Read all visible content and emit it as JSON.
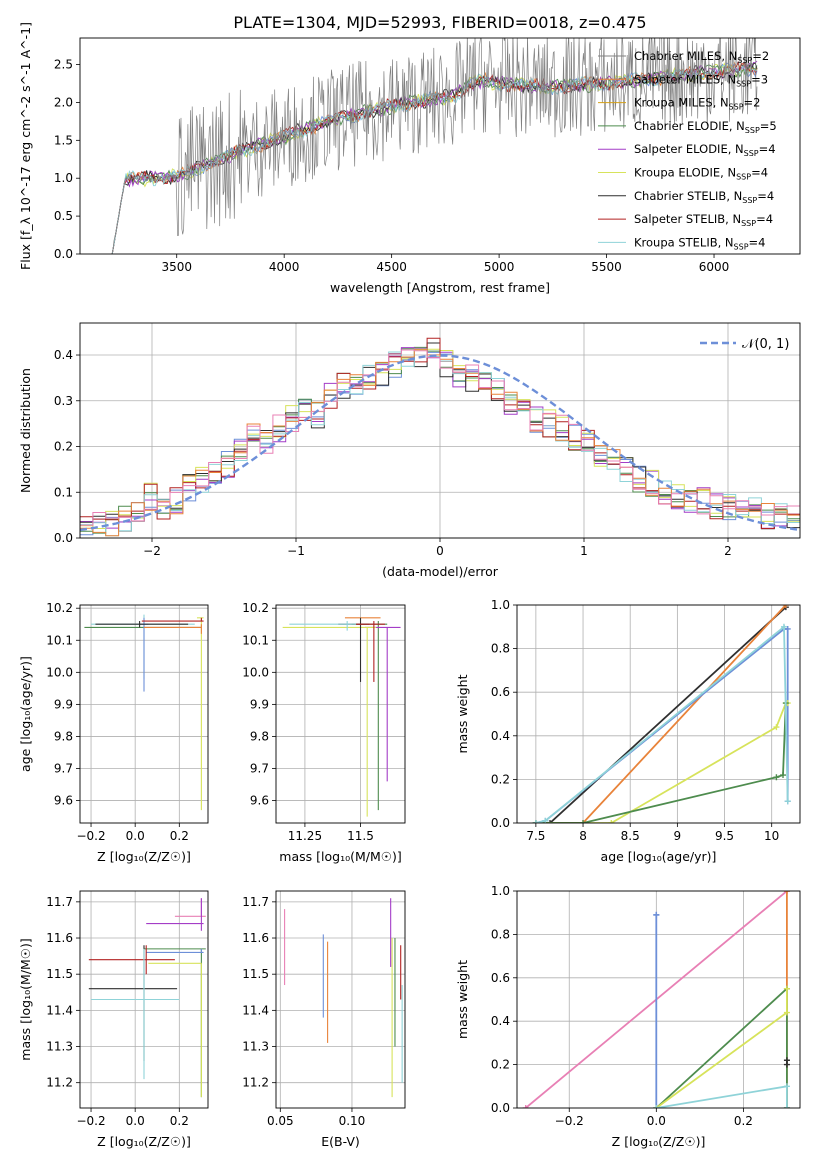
{
  "figure_title": "PLATE=1304, MJD=52993, FIBERID=0018, z=0.475",
  "colors": [
    "#808080",
    "#e8833a",
    "#d4a017",
    "#4e8c4e",
    "#a43dc7",
    "#d7e35b",
    "#2f2f2f",
    "#b22222",
    "#8fd3d8",
    "#6d8fd8",
    "#e880b5"
  ],
  "chart_data": [
    {
      "id": "spectrum",
      "type": "line",
      "title": "PLATE=1304, MJD=52993, FIBERID=0018, z=0.475",
      "xlabel": "wavelength [Angstrom, rest frame]",
      "ylabel": "Flux [f_λ 10^-17 erg cm^-2 s^-1 A^-1]",
      "xlim": [
        3050,
        6400
      ],
      "ylim": [
        0,
        2.85
      ],
      "xticks": [
        3500,
        4000,
        4500,
        5000,
        5500,
        6000
      ],
      "yticks": [
        0.0,
        0.5,
        1.0,
        1.5,
        2.0,
        2.5
      ],
      "legend_loc": "top-right",
      "legend": [
        "Chabrier MILES, N_SSP=2",
        "Salpeter MILES, N_SSP=3",
        "Kroupa MILES, N_SSP=2",
        "Chabrier ELODIE, N_SSP=5",
        "Salpeter ELODIE, N_SSP=4",
        "Kroupa ELODIE, N_SSP=4",
        "Chabrier STELIB, N_SSP=4",
        "Salpeter STELIB, N_SSP=4",
        "Kroupa STELIB, N_SSP=4"
      ],
      "continuum": {
        "x": [
          3200,
          3260,
          3350,
          3500,
          3700,
          4000,
          4200,
          4500,
          4800,
          4900,
          5000,
          5200,
          5500,
          5800,
          6000,
          6200
        ],
        "y": [
          0.0,
          1.0,
          1.0,
          1.02,
          1.25,
          1.55,
          1.75,
          1.95,
          2.1,
          2.3,
          2.25,
          2.2,
          2.25,
          2.35,
          2.4,
          2.45
        ]
      }
    },
    {
      "id": "residuals",
      "type": "line",
      "xlabel": "(data-model)/error",
      "ylabel": "Normed distribution",
      "xlim": [
        -2.5,
        2.5
      ],
      "ylim": [
        0,
        0.47
      ],
      "xticks": [
        -2,
        -1,
        0,
        1,
        2
      ],
      "yticks": [
        0.0,
        0.1,
        0.2,
        0.3,
        0.4
      ],
      "legend": [
        "𝒩(0, 1)"
      ],
      "legend_loc": "top-right",
      "grid": true,
      "hist_base": [
        0.03,
        0.03,
        0.03,
        0.04,
        0.06,
        0.09,
        0.07,
        0.08,
        0.11,
        0.13,
        0.14,
        0.16,
        0.19,
        0.23,
        0.21,
        0.24,
        0.26,
        0.28,
        0.27,
        0.31,
        0.33,
        0.34,
        0.35,
        0.36,
        0.38,
        0.39,
        0.4,
        0.41,
        0.38,
        0.36,
        0.35,
        0.34,
        0.32,
        0.3,
        0.28,
        0.26,
        0.25,
        0.24,
        0.22,
        0.21,
        0.18,
        0.17,
        0.15,
        0.13,
        0.12,
        0.1,
        0.09,
        0.08,
        0.08,
        0.07,
        0.07,
        0.06,
        0.06,
        0.05,
        0.05,
        0.05
      ]
    },
    {
      "id": "age-vs-Z",
      "type": "scatter",
      "xlabel": "Z [log10(Z/Z☉)]",
      "ylabel": "age [log10(age/yr)]",
      "xlim": [
        -0.25,
        0.33
      ],
      "ylim": [
        9.53,
        10.21
      ],
      "xticks": [
        -0.2,
        0.0,
        0.2
      ],
      "xtick_labels": [
        "−0.2",
        "0.0",
        "0.2"
      ],
      "yticks": [
        9.6,
        9.7,
        9.8,
        9.9,
        10.0,
        10.1,
        10.2
      ],
      "grid": true,
      "points": [
        {
          "x": 0.03,
          "y": 10.14,
          "xerr": [
            0.26,
            0.27
          ],
          "yerr": [
            0.0,
            0.0
          ],
          "c": 3
        },
        {
          "x": 0.04,
          "y": 10.15,
          "xerr": [
            0.24,
            0.23
          ],
          "yerr": [
            0.17,
            0.03
          ],
          "c": 8
        },
        {
          "x": 0.04,
          "y": 10.15,
          "xerr": [
            0.02,
            0.02
          ],
          "yerr": [
            0.21,
            0.02
          ],
          "c": 9
        },
        {
          "x": 0.3,
          "y": 10.17,
          "xerr": [
            0.02,
            0.01
          ],
          "yerr": [
            0.6,
            0.0
          ],
          "c": 5
        },
        {
          "x": 0.3,
          "y": 10.14,
          "xerr": [
            0.26,
            0.0
          ],
          "yerr": [
            0.02,
            0.01
          ],
          "c": 1
        },
        {
          "x": 0.02,
          "y": 10.15,
          "xerr": [
            0.2,
            0.22
          ],
          "yerr": [
            0.01,
            0.01
          ],
          "c": 6
        },
        {
          "x": 0.3,
          "y": 10.16,
          "xerr": [
            0.27,
            0.01
          ],
          "yerr": [
            0.0,
            0.01
          ],
          "c": 7
        }
      ]
    },
    {
      "id": "age-vs-mass",
      "type": "scatter",
      "xlabel": "mass [log10(M/M☉)]",
      "xlim": [
        11.12,
        11.7
      ],
      "ylim": [
        9.53,
        10.21
      ],
      "xticks": [
        11.25,
        11.5
      ],
      "yticks": [
        9.6,
        9.7,
        9.8,
        9.9,
        10.0,
        10.1,
        10.2
      ],
      "grid": true,
      "points": [
        {
          "x": 11.55,
          "y": 10.17,
          "xerr": [
            0.12,
            0.04
          ],
          "yerr": [
            0.0,
            0.0
          ],
          "c": 1
        },
        {
          "x": 11.58,
          "y": 10.15,
          "xerr": [
            0.12,
            0.04
          ],
          "yerr": [
            0.58,
            0.01
          ],
          "c": 3
        },
        {
          "x": 11.62,
          "y": 10.14,
          "xerr": [
            0.1,
            0.06
          ],
          "yerr": [
            0.48,
            0.0
          ],
          "c": 4
        },
        {
          "x": 11.53,
          "y": 10.14,
          "xerr": [
            0.38,
            0.04
          ],
          "yerr": [
            0.59,
            0.0
          ],
          "c": 5
        },
        {
          "x": 11.5,
          "y": 10.15,
          "xerr": [
            0.1,
            0.04
          ],
          "yerr": [
            0.18,
            0.02
          ],
          "c": 6
        },
        {
          "x": 11.56,
          "y": 10.15,
          "xerr": [
            0.08,
            0.05
          ],
          "yerr": [
            0.18,
            0.01
          ],
          "c": 7
        },
        {
          "x": 11.44,
          "y": 10.15,
          "xerr": [
            0.26,
            0.04
          ],
          "yerr": [
            0.02,
            0.01
          ],
          "c": 8
        }
      ]
    },
    {
      "id": "weight-vs-age",
      "type": "line",
      "xlabel": "age [log10(age/yr)]",
      "ylabel": "mass weight",
      "xlim": [
        7.3,
        10.3
      ],
      "ylim": [
        0,
        1.0
      ],
      "xticks": [
        7.5,
        8.0,
        8.5,
        9.0,
        9.5,
        10.0
      ],
      "yticks": [
        0.0,
        0.2,
        0.4,
        0.6,
        0.8,
        1.0
      ],
      "grid": true,
      "series": [
        {
          "c": 6,
          "x": [
            7.5,
            7.65,
            10.15
          ],
          "y": [
            0.0,
            0.0,
            0.99
          ]
        },
        {
          "c": 1,
          "x": [
            7.5,
            8.0,
            10.15
          ],
          "y": [
            0.0,
            0.0,
            1.0
          ]
        },
        {
          "c": 9,
          "x": [
            7.5,
            7.6,
            10.13,
            10.17,
            10.17
          ],
          "y": [
            0.0,
            0.01,
            0.89,
            0.89,
            0.1
          ]
        },
        {
          "c": 5,
          "x": [
            7.5,
            8.3,
            10.05,
            10.15,
            10.17
          ],
          "y": [
            0.0,
            0.0,
            0.44,
            0.55,
            0.55
          ]
        },
        {
          "c": 3,
          "x": [
            7.5,
            8.0,
            10.05,
            10.12,
            10.15
          ],
          "y": [
            0.0,
            0.0,
            0.21,
            0.22,
            0.55
          ]
        },
        {
          "c": 8,
          "x": [
            7.5,
            7.6,
            10.13,
            10.17
          ],
          "y": [
            0.0,
            0.01,
            0.9,
            0.1
          ]
        }
      ]
    },
    {
      "id": "mass-vs-Z",
      "type": "scatter",
      "xlabel": "Z [log10(Z/Z☉)]",
      "ylabel": "mass [log10(M/M☉)]",
      "xlim": [
        -0.25,
        0.33
      ],
      "ylim": [
        11.13,
        11.73
      ],
      "xticks": [
        -0.2,
        0.0,
        0.2
      ],
      "xtick_labels": [
        "−0.2",
        "0.0",
        "0.2"
      ],
      "yticks": [
        11.2,
        11.3,
        11.4,
        11.5,
        11.6,
        11.7
      ],
      "grid": true,
      "points": [
        {
          "x": 0.3,
          "y": 11.66,
          "xerr": [
            0.12,
            0.02
          ],
          "yerr": [
            0.0,
            0.05
          ],
          "c": 10
        },
        {
          "x": 0.3,
          "y": 11.64,
          "xerr": [
            0.25,
            0.01
          ],
          "yerr": [
            0.02,
            0.07
          ],
          "c": 4
        },
        {
          "x": 0.3,
          "y": 11.57,
          "xerr": [
            0.26,
            0.02
          ],
          "yerr": [
            0.41,
            0.0
          ],
          "c": 3
        },
        {
          "x": 0.3,
          "y": 11.56,
          "xerr": [
            0.25,
            0.01
          ],
          "yerr": [
            0.0,
            0.01
          ],
          "c": 9
        },
        {
          "x": 0.05,
          "y": 11.54,
          "xerr": [
            0.26,
            0.13
          ],
          "yerr": [
            0.04,
            0.04
          ],
          "c": 7
        },
        {
          "x": 0.3,
          "y": 11.53,
          "xerr": [
            0.24,
            0.0
          ],
          "yerr": [
            0.37,
            0.0
          ],
          "c": 5
        },
        {
          "x": 0.04,
          "y": 11.46,
          "xerr": [
            0.25,
            0.15
          ],
          "yerr": [
            0.2,
            0.12
          ],
          "c": 6
        },
        {
          "x": 0.04,
          "y": 11.43,
          "xerr": [
            0.24,
            0.16
          ],
          "yerr": [
            0.22,
            0.14
          ],
          "c": 8
        }
      ]
    },
    {
      "id": "mass-vs-ebv",
      "type": "scatter",
      "xlabel": "E(B-V)",
      "xlim": [
        0.047,
        0.137
      ],
      "ylim": [
        11.13,
        11.73
      ],
      "xticks": [
        0.05,
        0.1
      ],
      "xtick_labels": [
        "0.05",
        "0.10"
      ],
      "yticks": [
        11.2,
        11.3,
        11.4,
        11.5,
        11.6,
        11.7
      ],
      "grid": true,
      "points": [
        {
          "x": 0.053,
          "y": 11.58,
          "xerr": [
            0,
            0
          ],
          "yerr": [
            0.11,
            0.1
          ],
          "c": 10
        },
        {
          "x": 0.08,
          "y": 11.5,
          "xerr": [
            0,
            0
          ],
          "yerr": [
            0.12,
            0.11
          ],
          "c": 9
        },
        {
          "x": 0.083,
          "y": 11.47,
          "xerr": [
            0,
            0
          ],
          "yerr": [
            0.16,
            0.12
          ],
          "c": 1
        },
        {
          "x": 0.127,
          "y": 11.6,
          "xerr": [
            0,
            0
          ],
          "yerr": [
            0.08,
            0.11
          ],
          "c": 4
        },
        {
          "x": 0.128,
          "y": 11.45,
          "xerr": [
            0,
            0
          ],
          "yerr": [
            0.29,
            0.15
          ],
          "c": 5
        },
        {
          "x": 0.13,
          "y": 11.5,
          "xerr": [
            0,
            0
          ],
          "yerr": [
            0.2,
            0.1
          ],
          "c": 3
        },
        {
          "x": 0.134,
          "y": 11.5,
          "xerr": [
            0,
            0
          ],
          "yerr": [
            0.07,
            0.08
          ],
          "c": 7
        },
        {
          "x": 0.135,
          "y": 11.38,
          "xerr": [
            0,
            0
          ],
          "yerr": [
            0.18,
            0.09
          ],
          "c": 8
        }
      ]
    },
    {
      "id": "weight-vs-Z",
      "type": "line",
      "xlabel": "Z [log10(Z/Z☉)]",
      "ylabel": "mass weight",
      "xlim": [
        -0.32,
        0.33
      ],
      "ylim": [
        0,
        1.0
      ],
      "xticks": [
        -0.2,
        0.0,
        0.2
      ],
      "xtick_labels": [
        "−0.2",
        "0.0",
        "0.2"
      ],
      "yticks": [
        0.0,
        0.2,
        0.4,
        0.6,
        0.8,
        1.0
      ],
      "grid": true,
      "series": [
        {
          "c": 10,
          "x": [
            -0.3,
            0.3
          ],
          "y": [
            0.0,
            1.0
          ]
        },
        {
          "c": 1,
          "x": [
            0.3,
            0.3
          ],
          "y": [
            0.0,
            1.0
          ]
        },
        {
          "c": 9,
          "x": [
            0.0,
            0.0,
            0.0
          ],
          "y": [
            0.0,
            0.89,
            0.89
          ]
        },
        {
          "c": 3,
          "x": [
            0.0,
            0.3,
            0.3
          ],
          "y": [
            0.0,
            0.55,
            0.0
          ]
        },
        {
          "c": 5,
          "x": [
            0.0,
            0.3,
            0.3
          ],
          "y": [
            0.0,
            0.44,
            0.55
          ]
        },
        {
          "c": 8,
          "x": [
            0.0,
            0.3,
            0.3
          ],
          "y": [
            0.0,
            0.1,
            0.0
          ]
        },
        {
          "c": 6,
          "x": [
            0.3,
            0.3
          ],
          "y": [
            0.2,
            0.22
          ]
        }
      ]
    }
  ]
}
